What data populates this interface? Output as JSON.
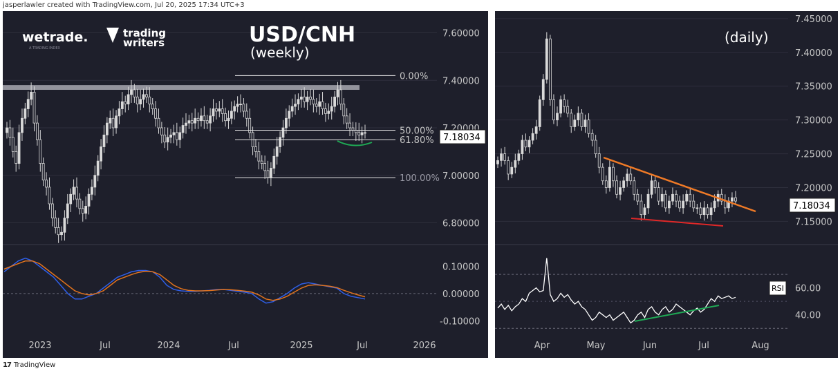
{
  "header": {
    "credit": "jasperlawler created with TradingView.com, Jul 20, 2025 17:34 UTC+3"
  },
  "footer": {
    "logo_mark": "17",
    "brand": "TradingView"
  },
  "branding": {
    "wetrade": "wetrade.",
    "wetrade_tagline": "A TRADING INDEX",
    "trading_writers_line1": "trading",
    "trading_writers_line2": "writers"
  },
  "colors": {
    "background": "#1e1f2b",
    "candle": "#d9d9d9",
    "text": "#c8c8c8",
    "macd_line": "#2f5fe8",
    "signal_line": "#e2731d",
    "trendline_orange": "#f07a26",
    "trendline_red": "#e02828",
    "green_curve": "#1faa55",
    "resistance_band": "#a8a8b0"
  },
  "chart_data": [
    {
      "type": "candlestick",
      "title": "USD/CNH",
      "subtitle": "(weekly)",
      "y_ticks": [
        "7.60000",
        "7.40000",
        "7.20000",
        "7.00000",
        "6.80000"
      ],
      "x_ticks": [
        "2023",
        "Jul",
        "2024",
        "Jul",
        "2025",
        "Jul",
        "2026"
      ],
      "ylim": [
        6.72,
        7.68
      ],
      "last_price": "7.18034",
      "fib_levels": [
        {
          "label": "0.00%",
          "value": 7.42
        },
        {
          "label": "50.00%",
          "value": 7.19
        },
        {
          "label": "61.80%",
          "value": 7.15
        },
        {
          "label": "100.00%",
          "value": 6.99
        }
      ],
      "resistance_zone": [
        7.36,
        7.38
      ],
      "closes": [
        7.2,
        7.16,
        7.1,
        7.05,
        7.18,
        7.24,
        7.28,
        7.32,
        7.35,
        7.22,
        7.15,
        7.05,
        6.98,
        6.95,
        6.88,
        6.82,
        6.78,
        6.75,
        6.76,
        6.82,
        6.88,
        6.92,
        6.95,
        6.9,
        6.86,
        6.84,
        6.87,
        6.92,
        6.95,
        7.0,
        7.06,
        7.12,
        7.17,
        7.22,
        7.24,
        7.2,
        7.25,
        7.28,
        7.31,
        7.3,
        7.34,
        7.36,
        7.33,
        7.3,
        7.32,
        7.34,
        7.33,
        7.3,
        7.28,
        7.24,
        7.2,
        7.17,
        7.14,
        7.16,
        7.17,
        7.18,
        7.15,
        7.18,
        7.21,
        7.22,
        7.23,
        7.22,
        7.24,
        7.23,
        7.25,
        7.23,
        7.22,
        7.25,
        7.28,
        7.27,
        7.28,
        7.26,
        7.23,
        7.24,
        7.27,
        7.29,
        7.3,
        7.3,
        7.27,
        7.24,
        7.18,
        7.12,
        7.1,
        7.06,
        7.05,
        7.02,
        6.99,
        7.03,
        7.08,
        7.12,
        7.16,
        7.2,
        7.24,
        7.27,
        7.29,
        7.3,
        7.32,
        7.33,
        7.31,
        7.33,
        7.32,
        7.3,
        7.29,
        7.31,
        7.28,
        7.26,
        7.27,
        7.29,
        7.33,
        7.36,
        7.3,
        7.25,
        7.22,
        7.2,
        7.19,
        7.18,
        7.17,
        7.18,
        7.18
      ],
      "oscillator": {
        "y_ticks": [
          "0.10000",
          "0.00000",
          "-0.10000"
        ],
        "ylim": [
          -0.14,
          0.17
        ],
        "macd": [
          0.08,
          0.1,
          0.12,
          0.13,
          0.12,
          0.1,
          0.08,
          0.06,
          0.03,
          0.0,
          -0.02,
          -0.02,
          -0.01,
          0.0,
          0.02,
          0.04,
          0.06,
          0.07,
          0.08,
          0.085,
          0.085,
          0.08,
          0.06,
          0.03,
          0.015,
          0.01,
          0.008,
          0.008,
          0.01,
          0.012,
          0.015,
          0.015,
          0.012,
          0.008,
          0.005,
          0.0,
          -0.02,
          -0.035,
          -0.03,
          -0.015,
          0.0,
          0.02,
          0.035,
          0.04,
          0.035,
          0.03,
          0.025,
          0.02,
          0.0,
          -0.01,
          -0.015,
          -0.02
        ],
        "signal": [
          0.09,
          0.1,
          0.11,
          0.12,
          0.12,
          0.11,
          0.09,
          0.07,
          0.05,
          0.03,
          0.01,
          0.0,
          -0.005,
          0.0,
          0.01,
          0.03,
          0.05,
          0.06,
          0.07,
          0.078,
          0.082,
          0.08,
          0.07,
          0.05,
          0.03,
          0.018,
          0.012,
          0.01,
          0.01,
          0.011,
          0.013,
          0.015,
          0.014,
          0.012,
          0.009,
          0.005,
          -0.005,
          -0.02,
          -0.025,
          -0.02,
          -0.01,
          0.005,
          0.02,
          0.03,
          0.032,
          0.03,
          0.027,
          0.022,
          0.012,
          0.003,
          -0.005,
          -0.012
        ]
      }
    },
    {
      "type": "candlestick",
      "title": "(daily)",
      "y_ticks": [
        "7.45000",
        "7.40000",
        "7.35000",
        "7.30000",
        "7.25000",
        "7.20000",
        "7.15000"
      ],
      "x_ticks": [
        "Apr",
        "May",
        "Jun",
        "Jul",
        "Aug"
      ],
      "ylim": [
        7.13,
        7.455
      ],
      "last_price": "7.18034",
      "closes": [
        7.24,
        7.25,
        7.24,
        7.22,
        7.23,
        7.24,
        7.25,
        7.27,
        7.26,
        7.27,
        7.28,
        7.29,
        7.33,
        7.36,
        7.42,
        7.33,
        7.3,
        7.31,
        7.33,
        7.32,
        7.31,
        7.29,
        7.3,
        7.31,
        7.29,
        7.3,
        7.28,
        7.27,
        7.25,
        7.23,
        7.21,
        7.2,
        7.23,
        7.21,
        7.19,
        7.2,
        7.21,
        7.22,
        7.21,
        7.19,
        7.18,
        7.16,
        7.17,
        7.19,
        7.21,
        7.2,
        7.18,
        7.19,
        7.17,
        7.18,
        7.19,
        7.18,
        7.17,
        7.18,
        7.19,
        7.18,
        7.17,
        7.17,
        7.16,
        7.17,
        7.16,
        7.17,
        7.18,
        7.19,
        7.18,
        7.17,
        7.18,
        7.185,
        7.18
      ],
      "rsi": {
        "label": "RSI",
        "y_ticks": [
          "60.00",
          "40.00"
        ],
        "ylim": [
          25,
          90
        ],
        "values": [
          45,
          48,
          44,
          47,
          43,
          46,
          48,
          52,
          50,
          56,
          58,
          60,
          57,
          58,
          82,
          55,
          50,
          52,
          56,
          53,
          55,
          51,
          48,
          50,
          46,
          44,
          40,
          36,
          38,
          42,
          40,
          38,
          40,
          36,
          38,
          40,
          42,
          38,
          34,
          36,
          40,
          42,
          38,
          44,
          46,
          42,
          40,
          44,
          46,
          42,
          44,
          48,
          46,
          44,
          42,
          40,
          43,
          45,
          42,
          44,
          48,
          52,
          50,
          54,
          52,
          53,
          54,
          52,
          53
        ],
        "trendline_label": ""
      }
    }
  ]
}
